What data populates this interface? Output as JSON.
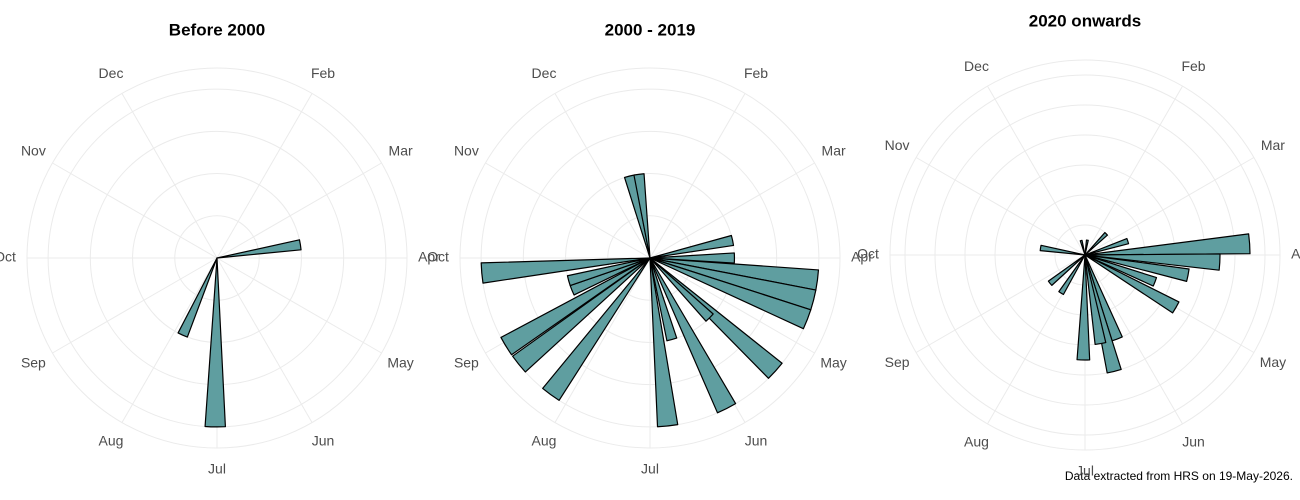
{
  "chart_data": [
    {
      "type": "polar_bar",
      "title": "Before 2000",
      "color": "#5f9ea0",
      "x": [
        2.7,
        6.02,
        6.8
      ],
      "values": [
        2,
        4,
        2
      ],
      "bar_width": 0.23,
      "xlim": [
        0,
        12
      ],
      "xticks": [
        {
          "value": 1,
          "label": "Feb"
        },
        {
          "value": 2,
          "label": "Mar"
        },
        {
          "value": 3,
          "label": "Apr"
        },
        {
          "value": 4,
          "label": "May"
        },
        {
          "value": 5,
          "label": "Jun"
        },
        {
          "value": 6,
          "label": "Jul"
        },
        {
          "value": 7,
          "label": "Aug"
        },
        {
          "value": 8,
          "label": "Sep"
        },
        {
          "value": 9,
          "label": "Oct"
        },
        {
          "value": 10,
          "label": "Nov"
        },
        {
          "value": 11,
          "label": "Dec"
        }
      ],
      "rlim": [
        0,
        4.5
      ],
      "rticks": [
        1,
        2,
        3,
        4
      ]
    },
    {
      "type": "polar_bar",
      "title": "2000 - 2019",
      "color": "#5f9ea0",
      "x": [
        11.53,
        11.75,
        2.6,
        3.0,
        3.25,
        3.48,
        3.71,
        4.4,
        4.5,
        5.1,
        5.5,
        5.8,
        7.2,
        7.7,
        7.95,
        8.25,
        8.48,
        8.83
      ],
      "values": [
        2,
        2,
        2,
        2,
        4,
        4,
        4,
        4,
        2,
        4,
        2,
        4,
        4,
        4,
        4,
        2,
        2,
        4
      ],
      "bar_width": 0.23,
      "xlim": [
        0,
        12
      ],
      "xticks": [
        {
          "value": 1,
          "label": "Feb"
        },
        {
          "value": 2,
          "label": "Mar"
        },
        {
          "value": 3,
          "label": "Apr"
        },
        {
          "value": 4,
          "label": "May"
        },
        {
          "value": 5,
          "label": "Jun"
        },
        {
          "value": 6,
          "label": "Jul"
        },
        {
          "value": 7,
          "label": "Aug"
        },
        {
          "value": 8,
          "label": "Sep"
        },
        {
          "value": 9,
          "label": "Oct"
        },
        {
          "value": 10,
          "label": "Nov"
        },
        {
          "value": 11,
          "label": "Dec"
        }
      ],
      "rlim": [
        0,
        4.5
      ],
      "rticks": [
        1,
        2,
        3,
        4
      ]
    },
    {
      "type": "polar_bar",
      "title": "2020 onwards",
      "color": "#5f9ea0",
      "x": [
        0.3,
        1.5,
        2.4,
        2.87,
        3.1,
        3.37,
        3.7,
        4.0,
        5.3,
        5.53,
        5.67,
        6.03,
        7.07,
        7.7,
        9.3,
        11.5
      ],
      "values": [
        1,
        2,
        3,
        11,
        9,
        7,
        5,
        7,
        6,
        8,
        6,
        7,
        3,
        3,
        3,
        1
      ],
      "bar_width": 0.23,
      "xlim": [
        0,
        12
      ],
      "xticks": [
        {
          "value": 1,
          "label": "Feb"
        },
        {
          "value": 2,
          "label": "Mar"
        },
        {
          "value": 3,
          "label": "Apr"
        },
        {
          "value": 4,
          "label": "May"
        },
        {
          "value": 5,
          "label": "Jun"
        },
        {
          "value": 6,
          "label": "Jul"
        },
        {
          "value": 7,
          "label": "Aug"
        },
        {
          "value": 8,
          "label": "Sep"
        },
        {
          "value": 9,
          "label": "Oct"
        },
        {
          "value": 10,
          "label": "Nov"
        },
        {
          "value": 11,
          "label": "Dec"
        }
      ],
      "rlim": [
        0,
        13
      ],
      "rticks": [
        2,
        4,
        6,
        8,
        10,
        12
      ]
    }
  ],
  "caption": "Data extracted from HRS on 19-May-2026."
}
